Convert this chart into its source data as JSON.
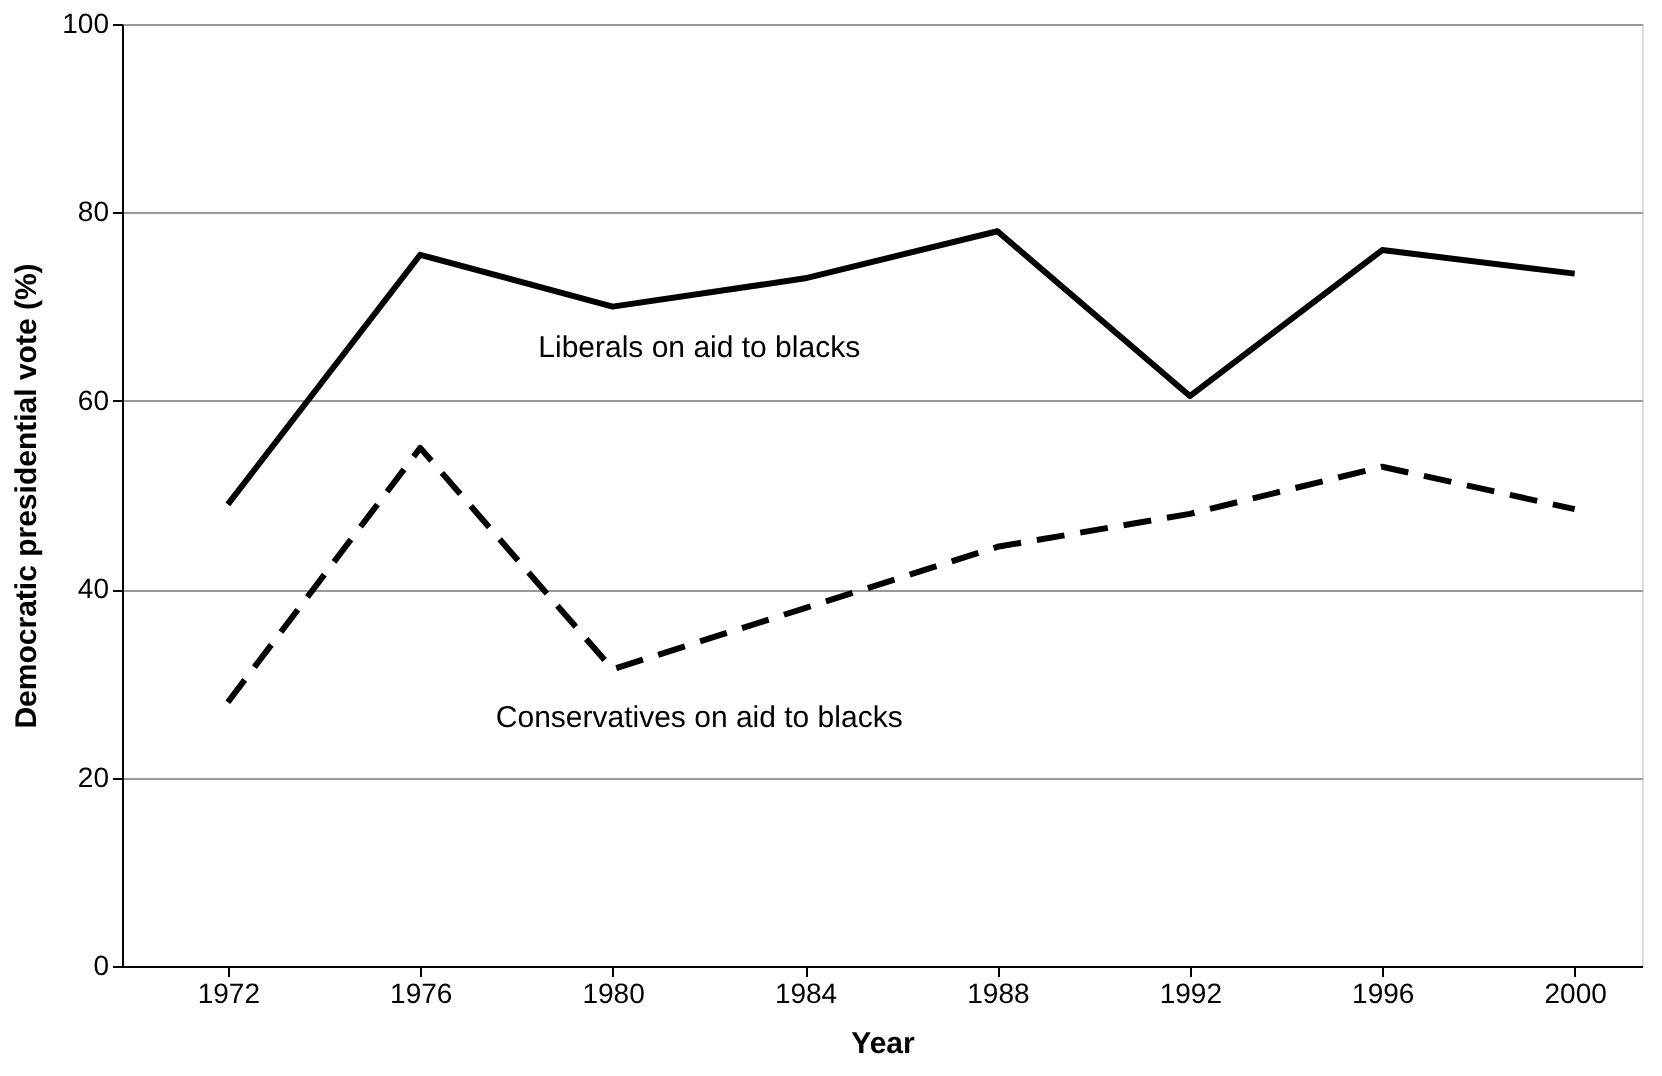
{
  "chart_data": {
    "type": "line",
    "xlabel": "Year",
    "ylabel": "Democratic presidential vote (%)",
    "x": [
      1972,
      1976,
      1980,
      1984,
      1988,
      1992,
      1996,
      2000
    ],
    "series": [
      {
        "name": "Liberals on aid to blacks",
        "color": "#000000",
        "line_style": "solid",
        "values": [
          49,
          75.5,
          70,
          73,
          78,
          60.5,
          76,
          73.5
        ]
      },
      {
        "name": "Conservatives on aid to blacks",
        "color": "#000000",
        "line_style": "dashed",
        "values": [
          28,
          55,
          31.5,
          38,
          44.5,
          48,
          53,
          48.5
        ]
      }
    ],
    "xlim": [
      1969.8,
      2001.4
    ],
    "xticks": [
      1972,
      1976,
      1980,
      1984,
      1988,
      1992,
      1996,
      2000
    ],
    "ylim": [
      0,
      100
    ],
    "yticks": [
      0,
      20,
      40,
      60,
      80,
      100
    ],
    "grid": "y",
    "marker": "none"
  }
}
